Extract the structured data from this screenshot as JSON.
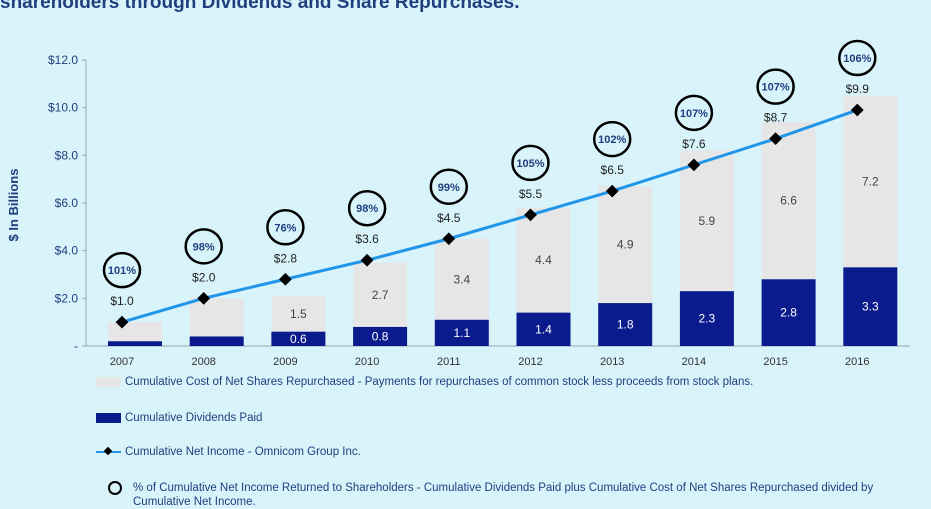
{
  "headline": "shareholders through Dividends and Share Repurchases.",
  "chart_data": {
    "type": "bar",
    "stacked": true,
    "ylabel": "$ In Billions",
    "ylim": [
      0,
      12
    ],
    "y_ticks": [
      "-",
      "$2.0",
      "$4.0",
      "$6.0",
      "$8.0",
      "$10.0",
      "$12.0"
    ],
    "categories": [
      "2007",
      "2008",
      "2009",
      "2010",
      "2011",
      "2012",
      "2013",
      "2014",
      "2015",
      "2016"
    ],
    "series": [
      {
        "name": "Cumulative Dividends Paid",
        "color": "#0a1b8e",
        "values": [
          0.2,
          0.4,
          0.6,
          0.8,
          1.1,
          1.4,
          1.8,
          2.3,
          2.8,
          3.3
        ],
        "labels": [
          "",
          "",
          "0.6",
          "0.8",
          "1.1",
          "1.4",
          "1.8",
          "2.3",
          "2.8",
          "3.3"
        ]
      },
      {
        "name": "Cumulative Cost of Net Shares Repurchased - Payments for repurchases of common stock less proceeds from stock plans.",
        "color": "#e6e6e6",
        "values": [
          0.8,
          1.6,
          1.5,
          2.7,
          3.4,
          4.4,
          4.9,
          5.9,
          6.6,
          7.2
        ],
        "labels": [
          "",
          "",
          "1.5",
          "2.7",
          "3.4",
          "4.4",
          "4.9",
          "5.9",
          "6.6",
          "7.2"
        ]
      }
    ],
    "line": {
      "name": "Cumulative Net Income - Omnicom Group Inc.",
      "color": "#2196e8",
      "values": [
        1.0,
        2.0,
        2.8,
        3.6,
        4.5,
        5.5,
        6.5,
        7.6,
        8.7,
        9.9
      ],
      "labels": [
        "$1.0",
        "$2.0",
        "$2.8",
        "$3.6",
        "$4.5",
        "$5.5",
        "$6.5",
        "$7.6",
        "$8.7",
        "$9.9"
      ]
    },
    "percent_returned": {
      "name": "% of Cumulative Net Income Returned to Shareholders - Cumulative Dividends Paid plus Cumulative Cost of Net Shares Repurchased divided by Cumulative Net Income.",
      "labels": [
        "101%",
        "98%",
        "76%",
        "98%",
        "99%",
        "105%",
        "102%",
        "107%",
        "107%",
        "106%"
      ]
    },
    "grid": false,
    "legend_position": "bottom"
  }
}
